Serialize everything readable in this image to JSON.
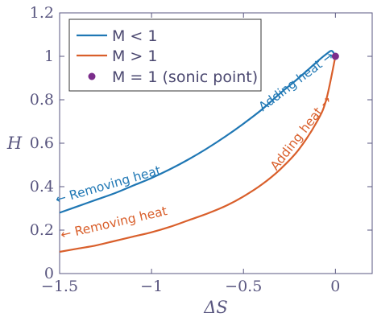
{
  "chart_data": {
    "type": "line",
    "title": "",
    "xlabel": "ΔS",
    "ylabel": "H",
    "xlim": [
      -1.5,
      0.2
    ],
    "ylim": [
      0,
      1.2
    ],
    "xticks": [
      -1.5,
      -1,
      -0.5,
      0
    ],
    "xtick_labels": [
      "−1.5",
      "−1",
      "−0.5",
      "0"
    ],
    "yticks": [
      0,
      0.2,
      0.4,
      0.6,
      0.8,
      1,
      1.2
    ],
    "ytick_labels": [
      "0",
      "0.2",
      "0.4",
      "0.6",
      "0.8",
      "1",
      "1.2"
    ],
    "grid": false,
    "legend_position": "top-left",
    "series": [
      {
        "name": "M < 1",
        "color": "#1f77b4",
        "x": [
          -1.5,
          -1.4,
          -1.3,
          -1.2,
          -1.1,
          -1.0,
          -0.9,
          -0.8,
          -0.7,
          -0.6,
          -0.5,
          -0.4,
          -0.3,
          -0.2,
          -0.1,
          -0.05,
          -0.02,
          0.0
        ],
        "y": [
          0.28,
          0.31,
          0.34,
          0.37,
          0.405,
          0.44,
          0.48,
          0.525,
          0.575,
          0.63,
          0.69,
          0.755,
          0.83,
          0.9,
          0.975,
          1.01,
          1.025,
          1.0
        ]
      },
      {
        "name": "M > 1",
        "color": "#d95f2b",
        "x": [
          -1.5,
          -1.4,
          -1.3,
          -1.2,
          -1.1,
          -1.0,
          -0.9,
          -0.8,
          -0.7,
          -0.6,
          -0.5,
          -0.4,
          -0.3,
          -0.2,
          -0.1,
          -0.05,
          0.0
        ],
        "y": [
          0.1,
          0.115,
          0.13,
          0.15,
          0.17,
          0.19,
          0.215,
          0.245,
          0.275,
          0.31,
          0.355,
          0.41,
          0.48,
          0.57,
          0.7,
          0.8,
          1.0
        ]
      },
      {
        "name": "M = 1 (sonic point)",
        "color": "#7b2d8b",
        "type": "scatter",
        "x": [
          0
        ],
        "y": [
          1
        ]
      }
    ],
    "annotations": [
      {
        "text": "← Removing heat",
        "color": "#1f77b4",
        "x": -1.23,
        "y": 0.39,
        "angle_deg": -16
      },
      {
        "text": "Adding heat →",
        "color": "#1f77b4",
        "x": -0.2,
        "y": 0.87,
        "angle_deg": -37
      },
      {
        "text": "← Removing heat",
        "color": "#d95f2b",
        "x": -1.2,
        "y": 0.215,
        "angle_deg": -13
      },
      {
        "text": "Adding heat →",
        "color": "#d95f2b",
        "x": -0.17,
        "y": 0.635,
        "angle_deg": -52
      }
    ]
  }
}
